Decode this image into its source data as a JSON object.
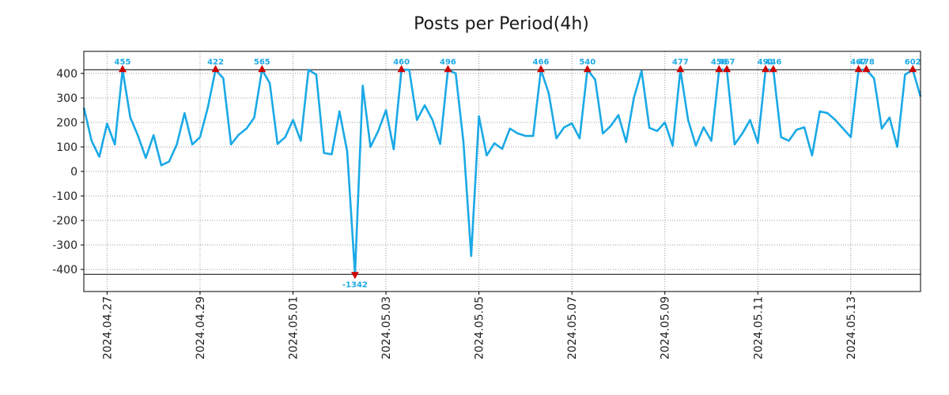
{
  "colors": {
    "line": "#1aa9e6",
    "marker": "#cc0000",
    "label": "#1aa9e6",
    "grid": "#999999",
    "axis": "#000000"
  },
  "chart_data": {
    "type": "line",
    "title": "Posts per Period(4h)",
    "xlabel": "",
    "ylabel": "",
    "ylim": [
      -490,
      490
    ],
    "yticks": [
      -400,
      -300,
      -200,
      -100,
      0,
      100,
      200,
      300,
      400
    ],
    "clip_upper": 415,
    "clip_lower": -420,
    "x_start": "2024.04.26 12:00",
    "period_hours": 4,
    "xticks": [
      {
        "label": "2024.04.27",
        "index": 3
      },
      {
        "label": "2024.04.29",
        "index": 15
      },
      {
        "label": "2024.05.01",
        "index": 27
      },
      {
        "label": "2024.05.03",
        "index": 39
      },
      {
        "label": "2024.05.05",
        "index": 51
      },
      {
        "label": "2024.05.07",
        "index": 63
      },
      {
        "label": "2024.05.09",
        "index": 75
      },
      {
        "label": "2024.05.11",
        "index": 87
      },
      {
        "label": "2024.05.13",
        "index": 99
      }
    ],
    "values": [
      260,
      125,
      60,
      195,
      110,
      455,
      220,
      145,
      55,
      148,
      25,
      40,
      110,
      238,
      110,
      140,
      260,
      422,
      380,
      110,
      150,
      175,
      220,
      565,
      360,
      112,
      140,
      210,
      125,
      415,
      395,
      75,
      70,
      245,
      80,
      -1342,
      350,
      100,
      165,
      250,
      90,
      460,
      415,
      210,
      270,
      210,
      112,
      496,
      400,
      120,
      -345,
      225,
      65,
      115,
      92,
      175,
      155,
      145,
      145,
      466,
      320,
      135,
      180,
      196,
      135,
      540,
      375,
      155,
      185,
      230,
      120,
      300,
      410,
      178,
      165,
      200,
      105,
      477,
      210,
      105,
      180,
      125,
      456,
      467,
      110,
      155,
      210,
      117,
      491,
      446,
      140,
      125,
      170,
      180,
      65,
      245,
      238,
      210,
      175,
      140,
      467,
      478,
      380,
      175,
      220,
      100,
      395,
      602,
      305
    ],
    "peaks": [
      {
        "index": 5,
        "label": "455",
        "dir": "up"
      },
      {
        "index": 17,
        "label": "422",
        "dir": "up"
      },
      {
        "index": 23,
        "label": "565",
        "dir": "up"
      },
      {
        "index": 35,
        "label": "-1342",
        "dir": "down"
      },
      {
        "index": 41,
        "label": "460",
        "dir": "up"
      },
      {
        "index": 47,
        "label": "496",
        "dir": "up"
      },
      {
        "index": 59,
        "label": "466",
        "dir": "up"
      },
      {
        "index": 65,
        "label": "540",
        "dir": "up"
      },
      {
        "index": 77,
        "label": "477",
        "dir": "up"
      },
      {
        "index": 82,
        "label": "456",
        "dir": "up"
      },
      {
        "index": 83,
        "label": "467",
        "dir": "up"
      },
      {
        "index": 88,
        "label": "491",
        "dir": "up"
      },
      {
        "index": 89,
        "label": "446",
        "dir": "up"
      },
      {
        "index": 100,
        "label": "467",
        "dir": "up"
      },
      {
        "index": 101,
        "label": "478",
        "dir": "up"
      },
      {
        "index": 107,
        "label": "602",
        "dir": "up"
      }
    ]
  }
}
